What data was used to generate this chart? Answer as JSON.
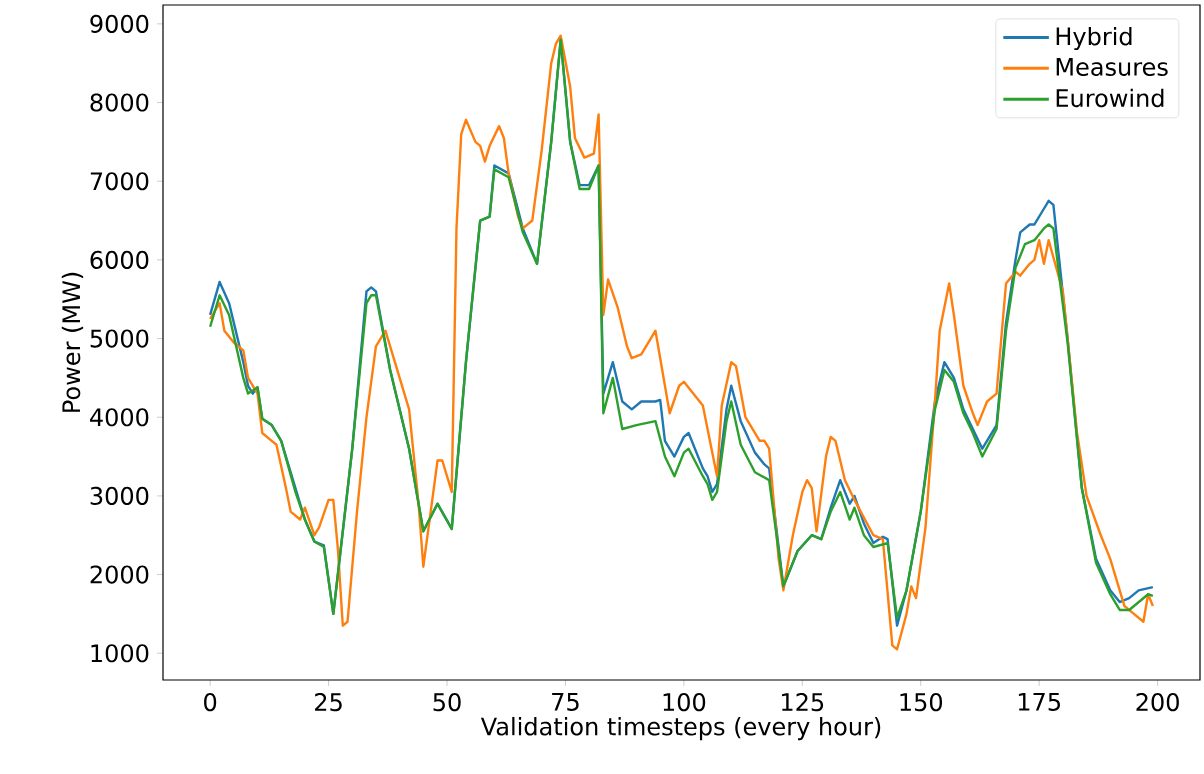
{
  "chart_data": {
    "type": "line",
    "xlabel": "Validation timesteps (every hour)",
    "ylabel": "Power (MW)",
    "xlim": [
      -9.95,
      208.95
    ],
    "ylim": [
      660,
      9240
    ],
    "xticks": [
      0,
      25,
      50,
      75,
      100,
      125,
      150,
      175,
      200
    ],
    "yticks": [
      1000,
      2000,
      3000,
      4000,
      5000,
      6000,
      7000,
      8000,
      9000
    ],
    "grid": false,
    "legend": "top right",
    "series": [
      {
        "name": "Hybrid",
        "color": "#1f77b4",
        "x": [
          0,
          2,
          4,
          7,
          8,
          9,
          10,
          11,
          13,
          15,
          18,
          20,
          22,
          24,
          26,
          30,
          33,
          34,
          35,
          38,
          42,
          45,
          48,
          51,
          54,
          57,
          59,
          60,
          63,
          66,
          69,
          72,
          74,
          76,
          78,
          80,
          82,
          83,
          85,
          87,
          89,
          91,
          94,
          95,
          96,
          98,
          100,
          101,
          104,
          105,
          106,
          107,
          109,
          110,
          112,
          115,
          117,
          118,
          121,
          124,
          127,
          129,
          131,
          133,
          135,
          136,
          138,
          140,
          142,
          143,
          145,
          147,
          150,
          153,
          155,
          157,
          159,
          161,
          163,
          166,
          168,
          170,
          171,
          173,
          174,
          176,
          177,
          178,
          181,
          184,
          187,
          190,
          192,
          194,
          196,
          199
        ],
        "values": [
          5300,
          5720,
          5450,
          4700,
          4400,
          4300,
          4380,
          3980,
          3900,
          3700,
          3100,
          2700,
          2420,
          2370,
          1500,
          3600,
          5600,
          5650,
          5600,
          4600,
          3600,
          2550,
          2900,
          2580,
          4700,
          6500,
          6550,
          7200,
          7100,
          6400,
          5950,
          7500,
          8800,
          7500,
          6950,
          6950,
          7200,
          4300,
          4700,
          4200,
          4100,
          4200,
          4200,
          4220,
          3700,
          3500,
          3750,
          3800,
          3350,
          3250,
          3050,
          3150,
          4100,
          4400,
          3950,
          3550,
          3400,
          3350,
          1850,
          2300,
          2500,
          2450,
          2850,
          3200,
          2900,
          3000,
          2650,
          2400,
          2480,
          2450,
          1350,
          1800,
          2800,
          4200,
          4700,
          4500,
          4100,
          3850,
          3600,
          3900,
          5200,
          6000,
          6350,
          6450,
          6450,
          6650,
          6750,
          6700,
          5000,
          3100,
          2200,
          1800,
          1650,
          1700,
          1800,
          1840
        ]
      },
      {
        "name": "Measures",
        "color": "#ff7f0e",
        "x": [
          0,
          2,
          3,
          5,
          7,
          8,
          10,
          11,
          13,
          14,
          16,
          17,
          19,
          20,
          22,
          23,
          25,
          26,
          27,
          28,
          29,
          31,
          33,
          35,
          37,
          39,
          42,
          44,
          45,
          48,
          49,
          51,
          52,
          53,
          54,
          56,
          57,
          58,
          59,
          61,
          62,
          63,
          65,
          66,
          68,
          70,
          72,
          73,
          74,
          76,
          77,
          79,
          81,
          82,
          83,
          84,
          86,
          88,
          89,
          91,
          93,
          94,
          97,
          99,
          100,
          102,
          104,
          107,
          108,
          110,
          111,
          113,
          116,
          117,
          118,
          120,
          121,
          123,
          125,
          126,
          127,
          128,
          130,
          131,
          132,
          134,
          136,
          140,
          142,
          144,
          145,
          147,
          148,
          149,
          151,
          153,
          154,
          156,
          157,
          159,
          161,
          162,
          164,
          166,
          168,
          170,
          171,
          173,
          174,
          175,
          176,
          177,
          180,
          183,
          185,
          188,
          190,
          193,
          195,
          197,
          198,
          199
        ],
        "values": [
          5250,
          5450,
          5100,
          4950,
          4850,
          4500,
          4300,
          3800,
          3700,
          3650,
          3100,
          2800,
          2700,
          2850,
          2500,
          2600,
          2950,
          2950,
          2300,
          1350,
          1400,
          2800,
          4000,
          4900,
          5100,
          4700,
          4100,
          2900,
          2100,
          3450,
          3450,
          3050,
          6400,
          7600,
          7780,
          7500,
          7450,
          7250,
          7450,
          7700,
          7550,
          7100,
          6550,
          6400,
          6500,
          7400,
          8500,
          8750,
          8850,
          8200,
          7550,
          7300,
          7350,
          7850,
          5300,
          5750,
          5400,
          4900,
          4750,
          4800,
          5000,
          5100,
          4050,
          4400,
          4450,
          4300,
          4150,
          3250,
          4150,
          4700,
          4650,
          4000,
          3700,
          3700,
          3600,
          2200,
          1800,
          2500,
          3050,
          3200,
          3100,
          2550,
          3500,
          3750,
          3700,
          3200,
          2950,
          2500,
          2450,
          1100,
          1050,
          1500,
          1850,
          1700,
          2600,
          4200,
          5100,
          5700,
          5300,
          4400,
          4050,
          3900,
          4200,
          4300,
          5700,
          5850,
          5800,
          5950,
          6000,
          6250,
          5950,
          6250,
          5600,
          3800,
          3000,
          2500,
          2200,
          1600,
          1500,
          1400,
          1750,
          1600
        ]
      },
      {
        "name": "Eurowind",
        "color": "#2ca02c",
        "x": [
          0,
          2,
          4,
          7,
          8,
          10,
          11,
          13,
          15,
          18,
          20,
          22,
          24,
          26,
          30,
          33,
          34,
          35,
          38,
          42,
          45,
          48,
          51,
          54,
          57,
          59,
          60,
          63,
          66,
          69,
          72,
          74,
          76,
          78,
          80,
          82,
          83,
          85,
          87,
          90,
          94,
          96,
          98,
          100,
          101,
          104,
          105,
          106,
          107,
          109,
          110,
          112,
          115,
          118,
          121,
          124,
          127,
          129,
          131,
          133,
          135,
          136,
          138,
          140,
          143,
          145,
          147,
          150,
          153,
          155,
          157,
          159,
          161,
          163,
          166,
          168,
          170,
          172,
          174,
          176,
          177,
          178,
          181,
          184,
          187,
          190,
          192,
          194,
          196,
          198,
          199
        ],
        "values": [
          5150,
          5550,
          5300,
          4500,
          4300,
          4380,
          3980,
          3900,
          3700,
          3050,
          2700,
          2420,
          2350,
          1500,
          3600,
          5450,
          5550,
          5550,
          4600,
          3600,
          2550,
          2900,
          2580,
          4700,
          6500,
          6550,
          7150,
          7050,
          6350,
          5950,
          7500,
          8800,
          7500,
          6900,
          6900,
          7200,
          4050,
          4500,
          3850,
          3900,
          3950,
          3500,
          3250,
          3550,
          3600,
          3250,
          3150,
          2950,
          3050,
          3950,
          4200,
          3650,
          3300,
          3200,
          1850,
          2300,
          2500,
          2450,
          2800,
          3050,
          2700,
          2850,
          2500,
          2350,
          2400,
          1450,
          1800,
          2800,
          4100,
          4600,
          4450,
          4050,
          3800,
          3500,
          3850,
          5100,
          5900,
          6200,
          6250,
          6400,
          6450,
          6400,
          4950,
          3100,
          2150,
          1750,
          1550,
          1550,
          1650,
          1750,
          1730
        ]
      }
    ]
  }
}
